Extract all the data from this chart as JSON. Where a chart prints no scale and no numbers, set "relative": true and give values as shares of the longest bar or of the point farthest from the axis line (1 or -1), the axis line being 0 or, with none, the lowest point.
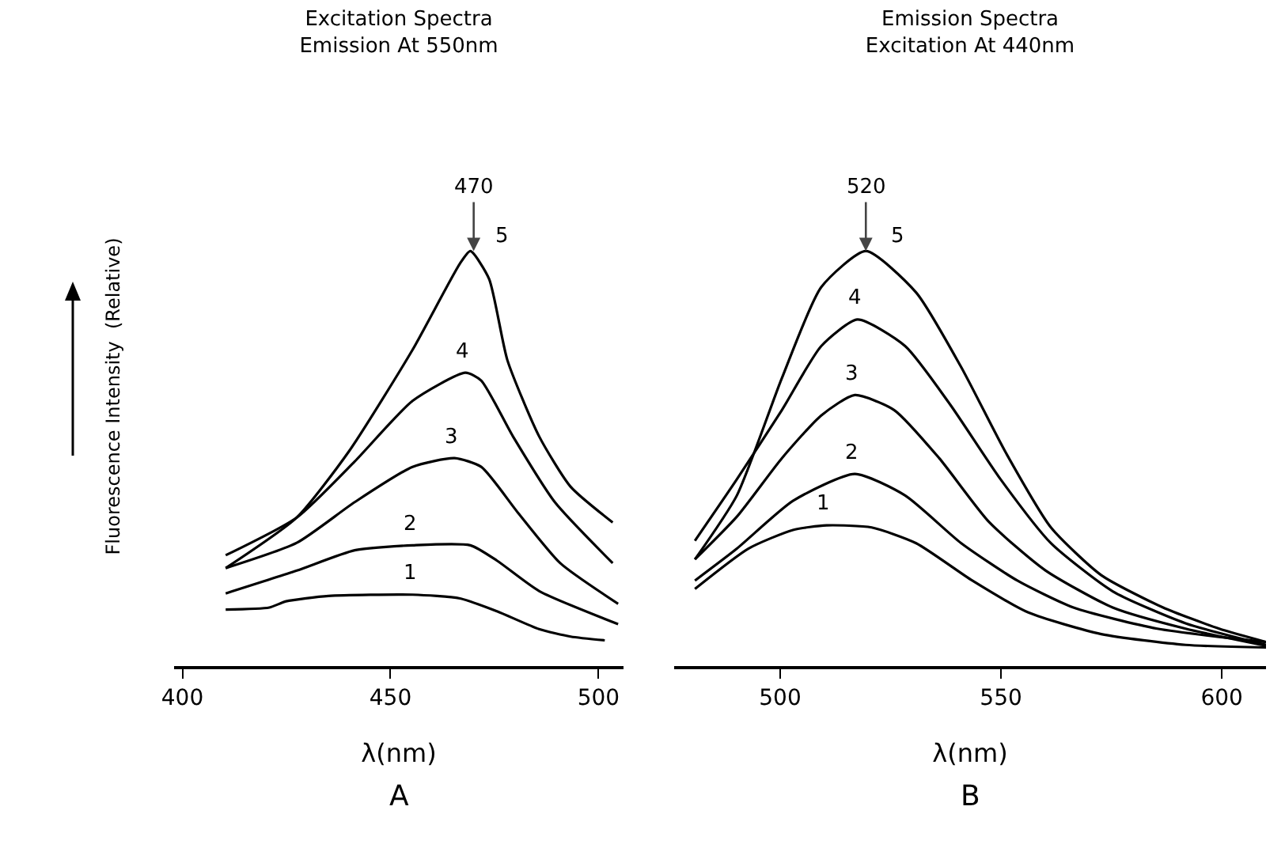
{
  "chart_data": [
    {
      "type": "line",
      "title": "Excitation Spectra",
      "subtitle": "Emission At 550nm",
      "xlabel": "λ(nm)",
      "ylabel": "Fluorescence Intensity  (Relative)",
      "relative": true,
      "xlim": [
        398,
        506
      ],
      "xticks": [
        400,
        450,
        500
      ],
      "grid": false,
      "legend": false,
      "line_style": "solid",
      "annotations": [
        {
          "text": "470",
          "x": 470,
          "y": 1
        },
        "A"
      ],
      "series": [
        {
          "name": "1",
          "color": "#000000",
          "x": [
            410.4,
            420.9,
            424.9,
            435.1,
            455.3,
            466.7,
            475.6,
            485.7,
            493.3,
            501.5
          ],
          "values": [
            0.136,
            0.141,
            0.156,
            0.169,
            0.172,
            0.163,
            0.132,
            0.089,
            0.071,
            0.062
          ]
        },
        {
          "name": "2",
          "color": "#000000",
          "x": [
            410.4,
            427.5,
            441.4,
            455.3,
            469.2,
            475.6,
            485.7,
            504.7
          ],
          "values": [
            0.175,
            0.23,
            0.279,
            0.291,
            0.291,
            0.254,
            0.181,
            0.101
          ]
        },
        {
          "name": "3",
          "color": "#000000",
          "x": [
            410.4,
            427.5,
            441.4,
            455.3,
            465.4,
            471.8,
            480.6,
            490.8,
            504.7
          ],
          "values": [
            0.236,
            0.297,
            0.395,
            0.48,
            0.501,
            0.48,
            0.37,
            0.248,
            0.15
          ]
        },
        {
          "name": "4",
          "color": "#000000",
          "x": [
            410.4,
            427.5,
            441.4,
            455.3,
            468,
            471.8,
            479.4,
            489.5,
            503.4
          ],
          "values": [
            0.267,
            0.358,
            0.493,
            0.639,
            0.707,
            0.688,
            0.554,
            0.395,
            0.248
          ]
        },
        {
          "name": "5",
          "color": "#000000",
          "x": [
            410.4,
            427.5,
            440,
            455.3,
            466.7,
            469.2,
            473.7,
            478.1,
            485.7,
            493.3,
            503.4
          ],
          "values": [
            0.236,
            0.358,
            0.517,
            0.762,
            0.97,
            1,
            0.933,
            0.737,
            0.554,
            0.432,
            0.346
          ]
        }
      ]
    },
    {
      "type": "line",
      "title": "Emission Spectra",
      "subtitle": "Excitation At 440nm",
      "xlabel": "λ(nm)",
      "relative": true,
      "xlim": [
        476,
        610
      ],
      "xticks": [
        500,
        550,
        600
      ],
      "grid": false,
      "legend": false,
      "line_style": "solid",
      "annotations": [
        {
          "text": "520",
          "x": 519.4,
          "y": 1
        },
        "B"
      ],
      "series": [
        {
          "name": "1",
          "color": "#000000",
          "x": [
            480.7,
            492.8,
            502.9,
            510.5,
            520.7,
            530.8,
            543.5,
            556.2,
            572.7,
            591.8,
            610
          ],
          "values": [
            0.186,
            0.283,
            0.328,
            0.339,
            0.334,
            0.296,
            0.206,
            0.129,
            0.077,
            0.051,
            0.045
          ]
        },
        {
          "name": "2",
          "color": "#000000",
          "x": [
            480.7,
            490.2,
            502.9,
            516.9,
            528.3,
            541,
            553.7,
            566.4,
            585.4,
            610
          ],
          "values": [
            0.206,
            0.283,
            0.398,
            0.463,
            0.411,
            0.296,
            0.206,
            0.141,
            0.09,
            0.058
          ]
        },
        {
          "name": "3",
          "color": "#000000",
          "x": [
            480.7,
            490.2,
            500.4,
            509.3,
            516.9,
            525.8,
            536,
            547.3,
            560,
            575.3,
            591.8,
            610
          ],
          "values": [
            0.257,
            0.36,
            0.501,
            0.604,
            0.653,
            0.617,
            0.501,
            0.347,
            0.231,
            0.141,
            0.09,
            0.049
          ]
        },
        {
          "name": "4",
          "color": "#000000",
          "x": [
            480.7,
            490.2,
            500.4,
            509.3,
            517.5,
            528.3,
            538.5,
            549.9,
            561.3,
            575.3,
            591.8,
            610
          ],
          "values": [
            0.302,
            0.45,
            0.617,
            0.771,
            0.835,
            0.771,
            0.63,
            0.45,
            0.296,
            0.18,
            0.103,
            0.051
          ]
        },
        {
          "name": "5",
          "color": "#000000",
          "x": [
            480.7,
            490.2,
            500.4,
            509.3,
            519.4,
            530.8,
            541,
            551.1,
            561.3,
            572.7,
            586.7,
            599.4,
            610
          ],
          "values": [
            0.257,
            0.411,
            0.694,
            0.913,
            1,
            0.9,
            0.72,
            0.514,
            0.334,
            0.219,
            0.141,
            0.09,
            0.058
          ]
        }
      ]
    }
  ]
}
